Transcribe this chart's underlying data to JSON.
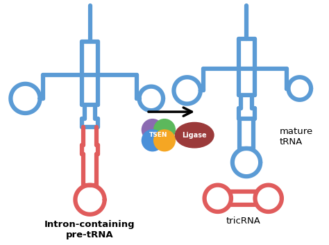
{
  "blue_color": "#5B9BD5",
  "red_color": "#E05C5C",
  "line_width": 4.5,
  "tsen_purple": "#8B6BB1",
  "tsen_blue": "#4A90D9",
  "tsen_orange": "#F5A623",
  "tsen_green": "#5CB85C",
  "ligase_color": "#9B3A3A",
  "bg_color": "#FFFFFF",
  "label_left": "Intron-containing\npre-tRNA",
  "label_right_top": "mature\ntRNA",
  "label_right_bot": "tricRNA",
  "tsen_label": "TSEN",
  "ligase_label": "Ligase"
}
